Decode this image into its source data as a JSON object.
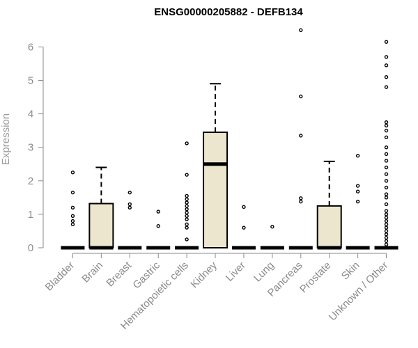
{
  "chart_data": {
    "type": "box",
    "title": "ENSG00000205882 - DEFB134",
    "ylabel": "Expression",
    "xlabel": "",
    "ylim": [
      0,
      6.6
    ],
    "yticks": [
      0,
      1,
      2,
      3,
      4,
      5,
      6
    ],
    "grid": false,
    "colors": {
      "box_fill": "#ede6cf",
      "stroke": "#000000",
      "axis": "#8a8a8a"
    },
    "categories": [
      "Bladder",
      "Brain",
      "Breast",
      "Gastric",
      "Hematopoietic cells",
      "Kidney",
      "Liver",
      "Lung",
      "Pancreas",
      "Prostate",
      "Skin",
      "Unknown / Other"
    ],
    "boxes": [
      {
        "q1": 0,
        "median": 0,
        "q3": 0,
        "whisker_low": 0,
        "whisker_high": 0,
        "outliers": [
          0.7,
          0.8,
          0.95,
          1.2,
          1.65,
          2.25
        ]
      },
      {
        "q1": 0,
        "median": 0,
        "q3": 1.32,
        "whisker_low": 0,
        "whisker_high": 2.4,
        "outliers": []
      },
      {
        "q1": 0,
        "median": 0,
        "q3": 0,
        "whisker_low": 0,
        "whisker_high": 0,
        "outliers": [
          1.2,
          1.3,
          1.65
        ]
      },
      {
        "q1": 0,
        "median": 0,
        "q3": 0,
        "whisker_low": 0,
        "whisker_high": 0,
        "outliers": [
          0.65,
          1.08
        ]
      },
      {
        "q1": 0,
        "median": 0,
        "q3": 0,
        "whisker_low": 0,
        "whisker_high": 0,
        "outliers": [
          0.25,
          0.6,
          0.7,
          0.85,
          0.95,
          1.05,
          1.15,
          1.25,
          1.35,
          1.45,
          1.55,
          2.18,
          3.12
        ]
      },
      {
        "q1": 0,
        "median": 2.5,
        "q3": 3.45,
        "whisker_low": 0,
        "whisker_high": 4.9,
        "outliers": []
      },
      {
        "q1": 0,
        "median": 0,
        "q3": 0,
        "whisker_low": 0,
        "whisker_high": 0,
        "outliers": [
          0.6,
          1.22
        ]
      },
      {
        "q1": 0,
        "median": 0,
        "q3": 0,
        "whisker_low": 0,
        "whisker_high": 0,
        "outliers": [
          0.63
        ]
      },
      {
        "q1": 0,
        "median": 0,
        "q3": 0,
        "whisker_low": 0,
        "whisker_high": 0,
        "outliers": [
          1.38,
          1.48,
          3.35,
          4.52,
          6.5
        ]
      },
      {
        "q1": 0,
        "median": 0,
        "q3": 1.25,
        "whisker_low": 0,
        "whisker_high": 2.58,
        "outliers": []
      },
      {
        "q1": 0,
        "median": 0,
        "q3": 0,
        "whisker_low": 0,
        "whisker_high": 0,
        "outliers": [
          1.38,
          1.68,
          1.85,
          2.75
        ]
      },
      {
        "q1": 0,
        "median": 0,
        "q3": 0,
        "whisker_low": 0,
        "whisker_high": 0,
        "outliers": [
          0.1,
          0.2,
          0.3,
          0.4,
          0.5,
          0.6,
          0.7,
          0.8,
          0.9,
          1.0,
          1.1,
          1.3,
          1.5,
          1.6,
          1.8,
          2.0,
          2.2,
          2.4,
          2.6,
          2.8,
          3.0,
          3.3,
          3.5,
          3.65,
          3.75,
          4.8,
          5.1,
          5.45,
          5.7,
          6.15
        ]
      }
    ]
  }
}
